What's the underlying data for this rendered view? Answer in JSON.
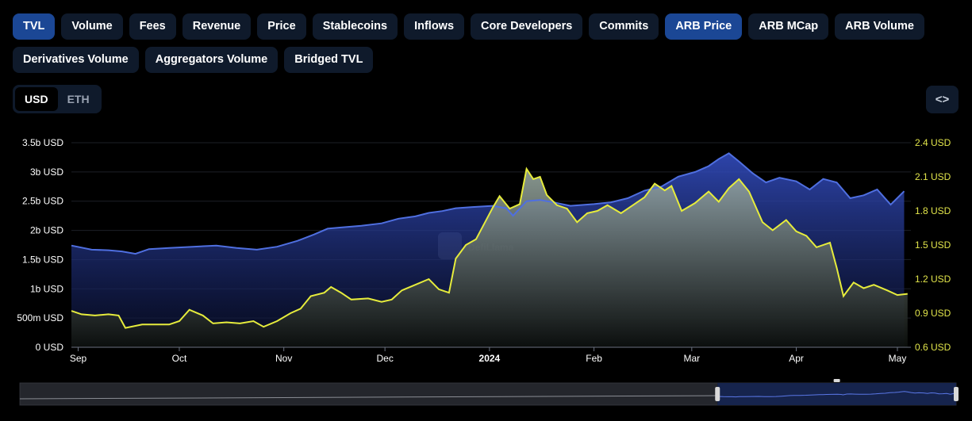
{
  "tabs_row1": [
    {
      "label": "TVL",
      "active": true
    },
    {
      "label": "Volume",
      "active": false
    },
    {
      "label": "Fees",
      "active": false
    },
    {
      "label": "Revenue",
      "active": false
    },
    {
      "label": "Price",
      "active": false
    },
    {
      "label": "Stablecoins",
      "active": false
    },
    {
      "label": "Inflows",
      "active": false
    },
    {
      "label": "Core Developers",
      "active": false
    },
    {
      "label": "Commits",
      "active": false
    },
    {
      "label": "ARB Price",
      "active": true
    },
    {
      "label": "ARB MCap",
      "active": false
    },
    {
      "label": "ARB Volume",
      "active": false
    }
  ],
  "tabs_row2": [
    {
      "label": "Derivatives Volume",
      "active": false
    },
    {
      "label": "Aggregators Volume",
      "active": false
    },
    {
      "label": "Bridged TVL",
      "active": false
    }
  ],
  "currency": {
    "options": [
      "USD",
      "ETH"
    ],
    "selected": "USD"
  },
  "embed_icon": "code-brackets-icon",
  "watermark": "DefiLlama",
  "colors": {
    "tvl": "#4f6fe0",
    "arb_price": "#e6ec3c",
    "active_tab": "#1b4795",
    "tab": "#0f1a2b"
  },
  "chart_data": {
    "type": "area",
    "x_tick_labels": [
      "Sep",
      "Oct",
      "Nov",
      "Dec",
      "2024",
      "Feb",
      "Mar",
      "Apr",
      "May"
    ],
    "x_tick_dates": [
      "2023-09-01",
      "2023-10-01",
      "2023-11-01",
      "2023-12-01",
      "2024-01-01",
      "2024-02-01",
      "2024-03-01",
      "2024-04-01",
      "2024-05-01"
    ],
    "x_range": [
      "2023-08-30",
      "2024-05-05"
    ],
    "y_left": {
      "ylim": [
        0,
        3500000000
      ],
      "tick_labels": [
        "0 USD",
        "500m USD",
        "1b USD",
        "1.5b USD",
        "2b USD",
        "2.5b USD",
        "3b USD",
        "3.5b USD"
      ]
    },
    "y_right": {
      "ylim": [
        0.6,
        2.4
      ],
      "tick_labels": [
        "0.6 USD",
        "0.9 USD",
        "1.2 USD",
        "1.5 USD",
        "1.8 USD",
        "2.1 USD",
        "2.4 USD"
      ]
    },
    "grid": true,
    "legend": "none",
    "series": [
      {
        "axis": "left",
        "points": [
          [
            "2023-08-30",
            1.74
          ],
          [
            "2023-09-05",
            1.67
          ],
          [
            "2023-09-10",
            1.66
          ],
          [
            "2023-09-14",
            1.64
          ],
          [
            "2023-09-18",
            1.6
          ],
          [
            "2023-09-22",
            1.68
          ],
          [
            "2023-09-28",
            1.7
          ],
          [
            "2023-10-05",
            1.72
          ],
          [
            "2023-10-12",
            1.74
          ],
          [
            "2023-10-18",
            1.7
          ],
          [
            "2023-10-24",
            1.67
          ],
          [
            "2023-10-30",
            1.72
          ],
          [
            "2023-11-05",
            1.82
          ],
          [
            "2023-11-10",
            1.93
          ],
          [
            "2023-11-14",
            2.03
          ],
          [
            "2023-11-18",
            2.05
          ],
          [
            "2023-11-24",
            2.08
          ],
          [
            "2023-11-30",
            2.12
          ],
          [
            "2023-12-05",
            2.2
          ],
          [
            "2023-12-10",
            2.24
          ],
          [
            "2023-12-14",
            2.3
          ],
          [
            "2023-12-18",
            2.33
          ],
          [
            "2023-12-22",
            2.38
          ],
          [
            "2023-12-27",
            2.4
          ],
          [
            "2024-01-02",
            2.42
          ],
          [
            "2024-01-06",
            2.38
          ],
          [
            "2024-01-08",
            2.25
          ],
          [
            "2024-01-12",
            2.5
          ],
          [
            "2024-01-16",
            2.52
          ],
          [
            "2024-01-20",
            2.48
          ],
          [
            "2024-01-25",
            2.42
          ],
          [
            "2024-02-01",
            2.45
          ],
          [
            "2024-02-06",
            2.48
          ],
          [
            "2024-02-11",
            2.55
          ],
          [
            "2024-02-16",
            2.68
          ],
          [
            "2024-02-21",
            2.75
          ],
          [
            "2024-02-26",
            2.92
          ],
          [
            "2024-03-02",
            3.0
          ],
          [
            "2024-03-06",
            3.1
          ],
          [
            "2024-03-09",
            3.22
          ],
          [
            "2024-03-12",
            3.32
          ],
          [
            "2024-03-15",
            3.18
          ],
          [
            "2024-03-19",
            2.98
          ],
          [
            "2024-03-23",
            2.82
          ],
          [
            "2024-03-27",
            2.9
          ],
          [
            "2024-04-01",
            2.84
          ],
          [
            "2024-04-05",
            2.7
          ],
          [
            "2024-04-09",
            2.88
          ],
          [
            "2024-04-13",
            2.82
          ],
          [
            "2024-04-17",
            2.55
          ],
          [
            "2024-04-21",
            2.6
          ],
          [
            "2024-04-25",
            2.7
          ],
          [
            "2024-04-29",
            2.44
          ],
          [
            "2024-05-03",
            2.67
          ]
        ]
      },
      {
        "axis": "right",
        "points": [
          [
            "2023-08-30",
            0.92
          ],
          [
            "2023-09-02",
            0.89
          ],
          [
            "2023-09-06",
            0.88
          ],
          [
            "2023-09-10",
            0.89
          ],
          [
            "2023-09-13",
            0.88
          ],
          [
            "2023-09-15",
            0.77
          ],
          [
            "2023-09-20",
            0.8
          ],
          [
            "2023-09-24",
            0.8
          ],
          [
            "2023-09-28",
            0.8
          ],
          [
            "2023-10-01",
            0.83
          ],
          [
            "2023-10-04",
            0.93
          ],
          [
            "2023-10-08",
            0.88
          ],
          [
            "2023-10-11",
            0.81
          ],
          [
            "2023-10-15",
            0.82
          ],
          [
            "2023-10-19",
            0.81
          ],
          [
            "2023-10-23",
            0.83
          ],
          [
            "2023-10-26",
            0.78
          ],
          [
            "2023-10-30",
            0.83
          ],
          [
            "2023-11-03",
            0.9
          ],
          [
            "2023-11-06",
            0.94
          ],
          [
            "2023-11-09",
            1.05
          ],
          [
            "2023-11-13",
            1.08
          ],
          [
            "2023-11-15",
            1.13
          ],
          [
            "2023-11-18",
            1.08
          ],
          [
            "2023-11-21",
            1.02
          ],
          [
            "2023-11-26",
            1.03
          ],
          [
            "2023-11-30",
            1.0
          ],
          [
            "2023-12-03",
            1.02
          ],
          [
            "2023-12-06",
            1.1
          ],
          [
            "2023-12-10",
            1.15
          ],
          [
            "2023-12-14",
            1.2
          ],
          [
            "2023-12-17",
            1.11
          ],
          [
            "2023-12-20",
            1.08
          ],
          [
            "2023-12-22",
            1.38
          ],
          [
            "2023-12-25",
            1.5
          ],
          [
            "2023-12-28",
            1.55
          ],
          [
            "2024-01-02",
            1.83
          ],
          [
            "2024-01-04",
            1.93
          ],
          [
            "2024-01-07",
            1.82
          ],
          [
            "2024-01-10",
            1.86
          ],
          [
            "2024-01-12",
            2.17
          ],
          [
            "2024-01-14",
            2.08
          ],
          [
            "2024-01-16",
            2.1
          ],
          [
            "2024-01-18",
            1.94
          ],
          [
            "2024-01-21",
            1.85
          ],
          [
            "2024-01-24",
            1.82
          ],
          [
            "2024-01-27",
            1.7
          ],
          [
            "2024-01-30",
            1.78
          ],
          [
            "2024-02-02",
            1.8
          ],
          [
            "2024-02-05",
            1.85
          ],
          [
            "2024-02-09",
            1.78
          ],
          [
            "2024-02-13",
            1.86
          ],
          [
            "2024-02-16",
            1.92
          ],
          [
            "2024-02-19",
            2.04
          ],
          [
            "2024-02-22",
            1.98
          ],
          [
            "2024-02-24",
            2.02
          ],
          [
            "2024-02-27",
            1.8
          ],
          [
            "2024-03-02",
            1.87
          ],
          [
            "2024-03-06",
            1.97
          ],
          [
            "2024-03-09",
            1.88
          ],
          [
            "2024-03-12",
            2.0
          ],
          [
            "2024-03-15",
            2.08
          ],
          [
            "2024-03-18",
            1.97
          ],
          [
            "2024-03-22",
            1.7
          ],
          [
            "2024-03-25",
            1.63
          ],
          [
            "2024-03-29",
            1.72
          ],
          [
            "2024-04-01",
            1.62
          ],
          [
            "2024-04-04",
            1.58
          ],
          [
            "2024-04-07",
            1.48
          ],
          [
            "2024-04-11",
            1.52
          ],
          [
            "2024-04-13",
            1.3
          ],
          [
            "2024-04-15",
            1.05
          ],
          [
            "2024-04-18",
            1.17
          ],
          [
            "2024-04-21",
            1.12
          ],
          [
            "2024-04-24",
            1.15
          ],
          [
            "2024-04-28",
            1.1
          ],
          [
            "2024-05-01",
            1.06
          ],
          [
            "2024-05-04",
            1.07
          ]
        ]
      }
    ]
  }
}
